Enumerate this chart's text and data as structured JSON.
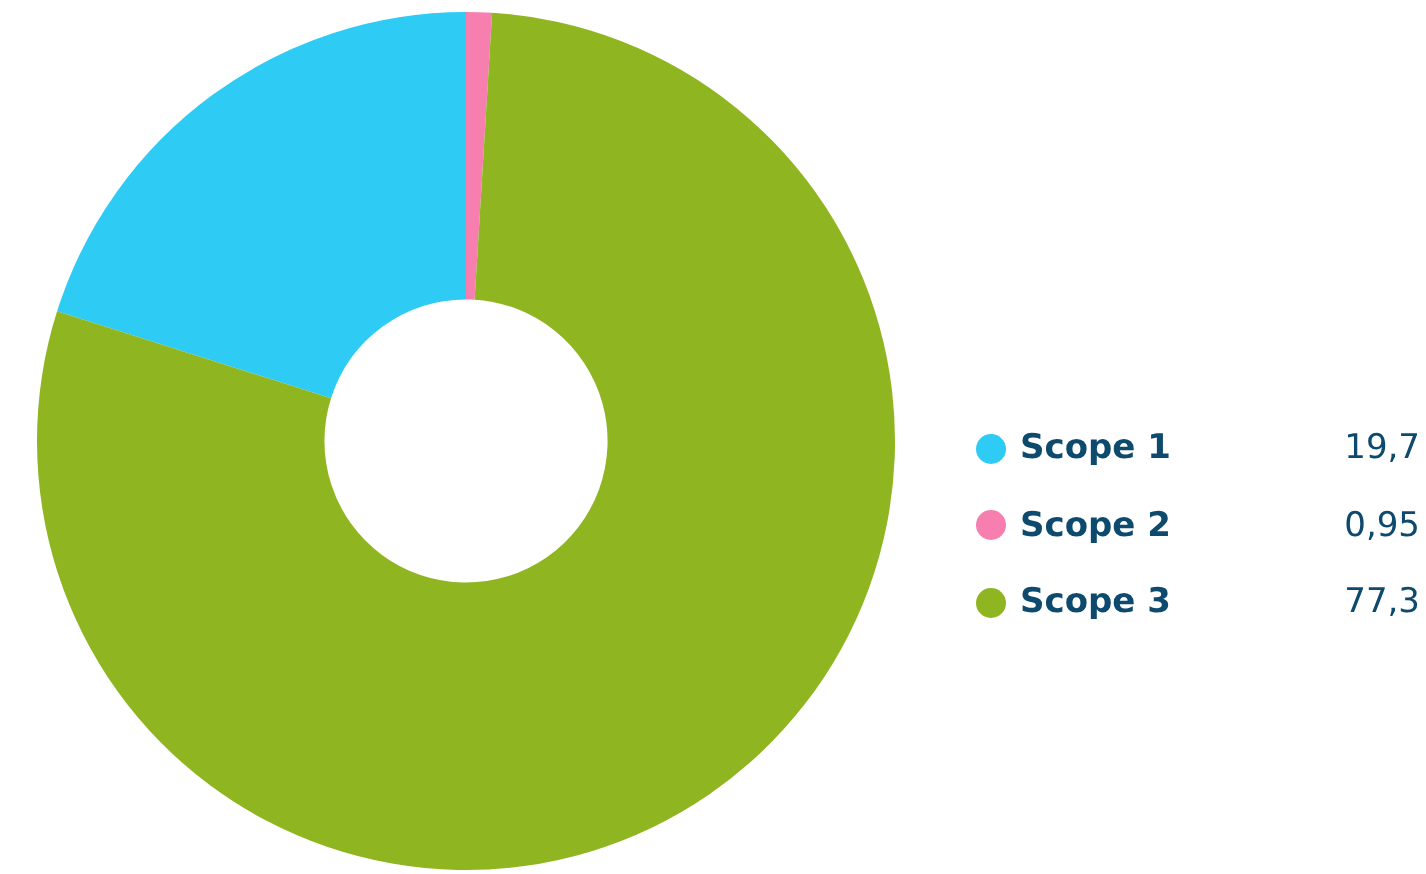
{
  "chart_data": {
    "type": "donut",
    "categories": [
      "Scope 1",
      "Scope 2",
      "Scope 3"
    ],
    "values": [
      19.7,
      0.95,
      77.3
    ],
    "value_labels": [
      "19,7",
      "0,95",
      "77,3"
    ],
    "colors": [
      "#2ecbf5",
      "#f77fb0",
      "#8fb521"
    ],
    "legend": "right"
  }
}
